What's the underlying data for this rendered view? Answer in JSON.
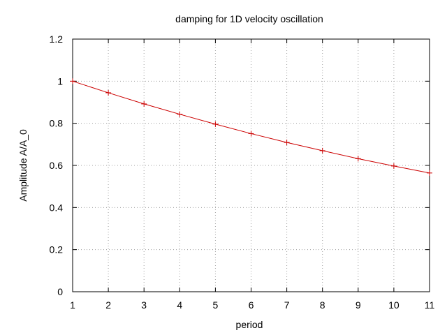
{
  "chart_data": {
    "type": "line",
    "title": "damping for 1D velocity oscillation",
    "xlabel": "period",
    "ylabel": "Amplitude A/A_0",
    "xlim": [
      1,
      11
    ],
    "ylim": [
      0,
      1.2
    ],
    "xticks": [
      "1",
      "2",
      "3",
      "4",
      "5",
      "6",
      "7",
      "8",
      "9",
      "10",
      "11"
    ],
    "yticks": [
      "0",
      "0.2",
      "0.4",
      "0.6",
      "0.8",
      "1",
      "1.2"
    ],
    "grid": true,
    "series": [
      {
        "color": "#cc0000",
        "x": [
          1,
          2,
          3,
          4,
          5,
          6,
          7,
          8,
          9,
          10,
          11
        ],
        "y": [
          1.0,
          0.945,
          0.892,
          0.843,
          0.796,
          0.751,
          0.709,
          0.67,
          0.632,
          0.597,
          0.564
        ]
      }
    ]
  }
}
